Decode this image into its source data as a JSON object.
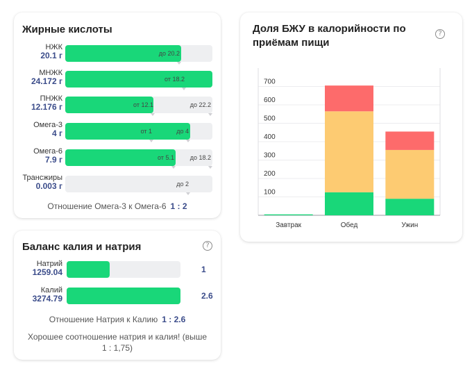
{
  "fatty_acids": {
    "title": "Жирные кислоты",
    "rows": [
      {
        "name": "НЖК",
        "value": "20.1 г",
        "fill": 0.79,
        "markers": [
          {
            "text": "до 20.2",
            "pos": 0.79
          }
        ]
      },
      {
        "name": "МНЖК",
        "value": "24.172 г",
        "fill": 1.0,
        "markers": [
          {
            "text": "от 18.2",
            "pos": 0.82
          }
        ]
      },
      {
        "name": "ПНЖК",
        "value": "12.176 г",
        "fill": 0.6,
        "markers": [
          {
            "text": "от 12.1",
            "pos": 0.61
          },
          {
            "text": "до 22.2",
            "pos": 1.0
          }
        ]
      },
      {
        "name": "Омега-3",
        "value": "4 г",
        "fill": 0.85,
        "markers": [
          {
            "text": "от 1",
            "pos": 0.6
          },
          {
            "text": "до 4",
            "pos": 0.85
          }
        ]
      },
      {
        "name": "Омега-6",
        "value": "7.9 г",
        "fill": 0.75,
        "markers": [
          {
            "text": "от 5.1",
            "pos": 0.75
          },
          {
            "text": "до 18.2",
            "pos": 1.0
          }
        ]
      },
      {
        "name": "Трансжиры",
        "value": "0.003 г",
        "fill": 0.0,
        "markers": [
          {
            "text": "до 2",
            "pos": 0.85
          }
        ]
      }
    ],
    "ratio_label": "Отношение Омега-3 к Омега-6",
    "ratio_value": "1 : 2"
  },
  "potassium_sodium": {
    "title": "Баланс калия и натрия",
    "help": "?",
    "rows": [
      {
        "name": "Натрий",
        "value": "1259.04",
        "fill": 0.38,
        "ratio_num": "1"
      },
      {
        "name": "Калий",
        "value": "3274.79",
        "fill": 1.0,
        "ratio_num": "2.6"
      }
    ],
    "ratio_label": "Отношение Натрия к Калию",
    "ratio_value": "1 : 2.6",
    "note": "Хорошее соотношение натрия и калия! (выше 1 : 1,75)"
  },
  "macro_chart": {
    "title": "Доля БЖУ в калорийности по приёмам пищи",
    "help": "?",
    "colors": {
      "green": "#19d779",
      "orange": "#fdcb72",
      "red": "#fd6b6b"
    }
  },
  "chart_data": {
    "type": "bar",
    "stacked": true,
    "categories": [
      "Завтрак",
      "Обед",
      "Ужин"
    ],
    "series": [
      {
        "values": [
          5,
          125,
          90
        ],
        "color": "#19d779"
      },
      {
        "values": [
          0,
          440,
          265
        ],
        "color": "#fdcb72"
      },
      {
        "values": [
          0,
          140,
          100
        ],
        "color": "#fd6b6b"
      }
    ],
    "y_ticks": [
      100,
      200,
      300,
      400,
      500,
      600,
      700
    ],
    "ylim": [
      0,
      800
    ],
    "grid": true
  }
}
